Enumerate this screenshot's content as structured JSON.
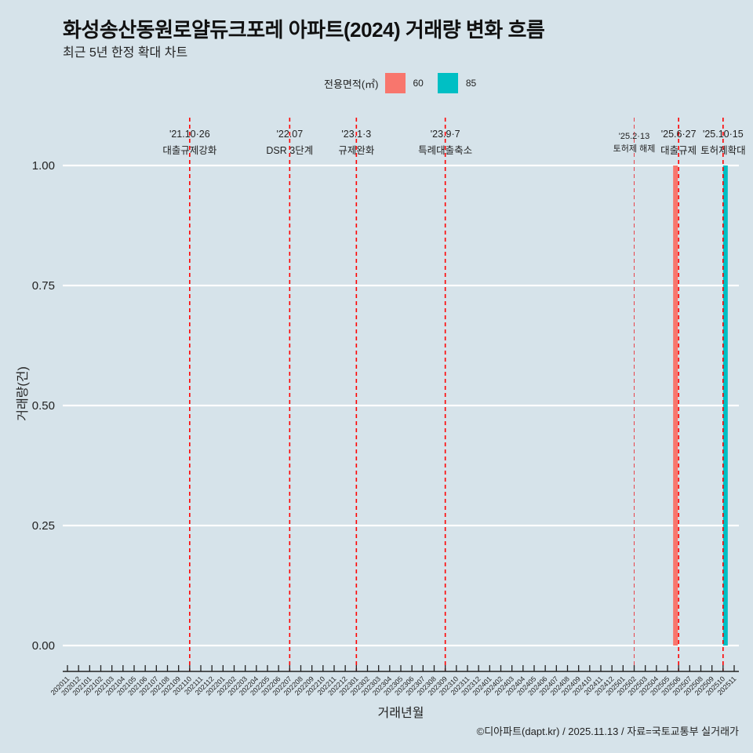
{
  "title": "화성송산동원로얄듀크포레 아파트(2024) 거래량 변화 흐름",
  "subtitle": "최근 5년 한정 확대 차트",
  "caption": "©디아파트(dapt.kr) / 2025.11.13 / 자료=국토교통부 실거래가",
  "legend": {
    "title": "전용면적(㎡)",
    "items": [
      {
        "label": "60",
        "color": "#f8766d"
      },
      {
        "label": "85",
        "color": "#00bfc4"
      }
    ]
  },
  "chart_data": {
    "type": "bar",
    "title": "화성송산동원로얄듀크포레 아파트(2024) 거래량 변화 흐름",
    "xlabel": "거래년월",
    "ylabel": "거래량(건)",
    "ylim": [
      0,
      1
    ],
    "yticks": [
      "0.00",
      "0.25",
      "0.50",
      "0.75",
      "1.00"
    ],
    "categories": [
      "202011",
      "202012",
      "202101",
      "202102",
      "202103",
      "202104",
      "202105",
      "202106",
      "202107",
      "202108",
      "202109",
      "202110",
      "202111",
      "202112",
      "202201",
      "202202",
      "202203",
      "202204",
      "202205",
      "202206",
      "202207",
      "202208",
      "202209",
      "202210",
      "202211",
      "202212",
      "202301",
      "202302",
      "202303",
      "202304",
      "202305",
      "202306",
      "202307",
      "202308",
      "202309",
      "202310",
      "202311",
      "202312",
      "202401",
      "202402",
      "202403",
      "202404",
      "202405",
      "202406",
      "202407",
      "202408",
      "202409",
      "202410",
      "202411",
      "202412",
      "202501",
      "202502",
      "202503",
      "202504",
      "202505",
      "202506",
      "202507",
      "202508",
      "202509",
      "202510",
      "202511"
    ],
    "series": [
      {
        "name": "60",
        "color": "#f8766d",
        "points": [
          {
            "x": "202506",
            "y": 1
          }
        ]
      },
      {
        "name": "85",
        "color": "#00bfc4",
        "points": [
          {
            "x": "202510",
            "y": 1
          }
        ]
      }
    ],
    "events": [
      {
        "x": "202110",
        "date": "'21.10·26",
        "label": "대출규제강화"
      },
      {
        "x": "202207",
        "date": "'22.07",
        "label": "DSR 3단계"
      },
      {
        "x": "202301",
        "date": "'23.1·3",
        "label": "규제완화"
      },
      {
        "x": "202309",
        "date": "'23.9·7",
        "label": "특례대출축소"
      },
      {
        "x": "202502",
        "date": "'25.2·13",
        "label": "토허제 해제",
        "minor": true
      },
      {
        "x": "202506",
        "date": "'25.6·27",
        "label": "대출규제"
      },
      {
        "x": "202510",
        "date": "'25.10·15",
        "label": "토허제확대"
      }
    ],
    "grid": true,
    "legend_position": "top"
  }
}
